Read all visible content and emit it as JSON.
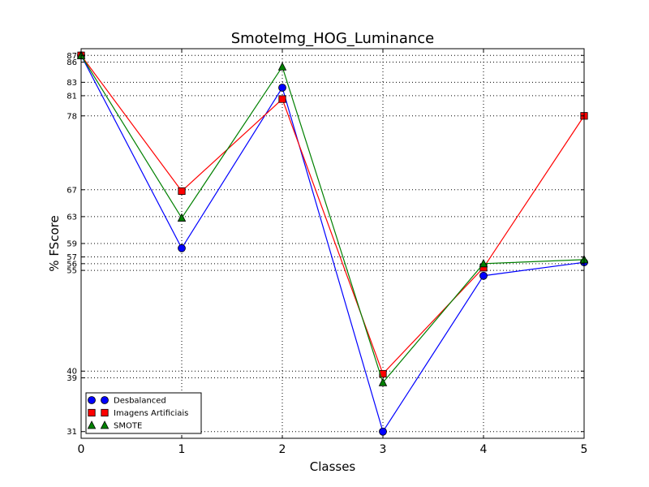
{
  "chart_data": {
    "type": "line",
    "title": "SmoteImg_HOG_Luminance",
    "xlabel": "Classes",
    "ylabel": "% FScore",
    "xlim": [
      0,
      5
    ],
    "ylim": [
      30,
      88
    ],
    "x": [
      0,
      1,
      2,
      3,
      4,
      5
    ],
    "xticks": [
      "0",
      "1",
      "2",
      "3",
      "4",
      "5"
    ],
    "yticks": [
      31,
      39,
      40,
      55,
      56,
      57,
      59,
      63,
      67,
      78,
      81,
      83,
      86,
      87
    ],
    "grid": true,
    "legend": "lower-left",
    "series": [
      {
        "name": "Desbalanced",
        "color": "#0000ff",
        "marker": "circle",
        "values": [
          87,
          58.3,
          82.2,
          31,
          54.2,
          56.2
        ]
      },
      {
        "name": "Imagens Artificiais",
        "color": "#ff0000",
        "marker": "square",
        "values": [
          87,
          66.8,
          80.5,
          39.6,
          55.4,
          78
        ]
      },
      {
        "name": "SMOTE",
        "color": "#008000",
        "marker": "triangle",
        "values": [
          87,
          62.8,
          85.3,
          38.3,
          56,
          56.6
        ]
      }
    ]
  }
}
